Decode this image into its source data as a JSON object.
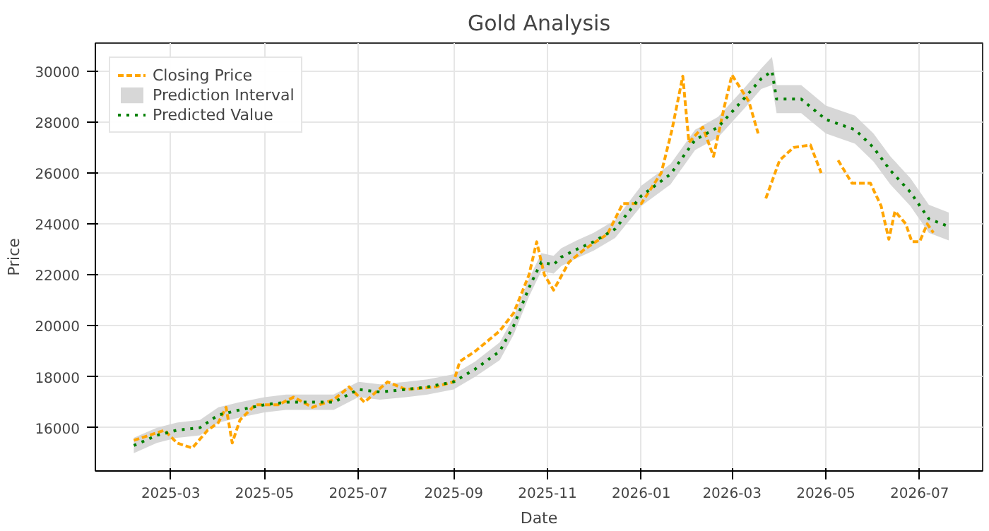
{
  "chart_data": {
    "type": "line",
    "title": "Gold Analysis",
    "xlabel": "Date",
    "ylabel": "Price",
    "xlim": [
      "2025-01-11",
      "2026-08-11"
    ],
    "xticks": [
      "2025-03",
      "2025-05",
      "2025-07",
      "2025-09",
      "2025-11",
      "2026-01",
      "2026-03",
      "2026-05",
      "2026-07"
    ],
    "ylim": [
      14300,
      31100
    ],
    "yticks": [
      16000,
      18000,
      20000,
      22000,
      24000,
      26000,
      28000,
      30000
    ],
    "grid": true,
    "legend": "top left",
    "series": [
      {
        "name": "Closing Price",
        "color": "#ffa500",
        "line_style": "dashed",
        "x": [
          "2025-02-05",
          "2025-02-15",
          "2025-02-25",
          "2025-03-05",
          "2025-03-15",
          "2025-03-25",
          "2025-04-01",
          "2025-04-06",
          "2025-04-10",
          "2025-04-15",
          "2025-04-25",
          "2025-05-10",
          "2025-05-20",
          "2025-06-01",
          "2025-06-15",
          "2025-06-25",
          "2025-07-05",
          "2025-07-20",
          "2025-08-01",
          "2025-08-20",
          "2025-09-01",
          "2025-09-05",
          "2025-09-15",
          "2025-10-01",
          "2025-10-10",
          "2025-10-20",
          "2025-10-25",
          "2025-10-30",
          "2025-11-05",
          "2025-11-15",
          "2025-11-25",
          "2025-12-10",
          "2025-12-20",
          "2026-01-01",
          "2026-01-14",
          "2026-01-21",
          "2026-01-28",
          "2026-02-01",
          "2026-02-10",
          "2026-02-17",
          "2026-02-24",
          "2026-03-01",
          "2026-03-12",
          "2026-03-18",
          "2026-03-20",
          "2026-03-23",
          "2026-04-01",
          "2026-04-10",
          "2026-04-21",
          "2026-04-28",
          "2026-05-03",
          "2026-05-09",
          "2026-05-18",
          "2026-05-30",
          "2026-06-06",
          "2026-06-11",
          "2026-06-15",
          "2026-06-22",
          "2026-06-26",
          "2026-07-01",
          "2026-07-06",
          "2026-07-10"
        ],
        "values": [
          15500,
          15700,
          15900,
          15400,
          15200,
          15900,
          16200,
          16800,
          15400,
          16300,
          16900,
          16900,
          17200,
          16800,
          17100,
          17600,
          17000,
          17800,
          17500,
          17600,
          17800,
          18600,
          19000,
          19800,
          20500,
          22000,
          23300,
          22000,
          21400,
          22500,
          23000,
          23600,
          24800,
          24800,
          26000,
          27700,
          29800,
          27200,
          27800,
          26650,
          28600,
          29850,
          28800,
          27550,
          null,
          25000,
          26500,
          27000,
          27100,
          26000,
          null,
          26500,
          25600,
          25600,
          24700,
          23400,
          24500,
          24000,
          23300,
          23300,
          24000,
          23650
        ]
      },
      {
        "name": "Prediction Interval",
        "type": "area",
        "color": "#d3d3d3"
      },
      {
        "name": "Predicted Value",
        "color": "#008000",
        "line_style": "dotted",
        "x": [
          "2025-02-05",
          "2025-02-20",
          "2025-03-05",
          "2025-03-20",
          "2025-04-01",
          "2025-04-15",
          "2025-05-01",
          "2025-05-15",
          "2025-06-01",
          "2025-06-15",
          "2025-07-01",
          "2025-07-15",
          "2025-08-01",
          "2025-08-15",
          "2025-09-01",
          "2025-09-15",
          "2025-10-01",
          "2025-10-10",
          "2025-10-20",
          "2025-10-28",
          "2025-11-05",
          "2025-11-10",
          "2025-11-20",
          "2025-12-01",
          "2025-12-15",
          "2026-01-01",
          "2026-01-20",
          "2026-02-05",
          "2026-02-20",
          "2026-03-10",
          "2026-03-20",
          "2026-03-27",
          "2026-03-30",
          "2026-04-15",
          "2026-05-01",
          "2026-05-20",
          "2026-06-01",
          "2026-06-12",
          "2026-06-25",
          "2026-07-07",
          "2026-07-20"
        ],
        "values": [
          15300,
          15700,
          15900,
          16000,
          16500,
          16700,
          16900,
          17000,
          17000,
          17000,
          17500,
          17400,
          17500,
          17600,
          17800,
          18300,
          19000,
          20000,
          21500,
          22500,
          22400,
          22700,
          23000,
          23300,
          23800,
          25100,
          25950,
          27300,
          27800,
          29000,
          29700,
          30000,
          28900,
          28900,
          28100,
          27700,
          27000,
          26100,
          25250,
          24200,
          23900
        ],
        "lower": [
          15000,
          15400,
          15600,
          15700,
          16200,
          16400,
          16600,
          16700,
          16700,
          16700,
          17200,
          17100,
          17200,
          17300,
          17500,
          18000,
          18650,
          19650,
          21150,
          22150,
          22050,
          22350,
          22650,
          22950,
          23450,
          24700,
          25550,
          26900,
          27400,
          28600,
          29300,
          29450,
          28350,
          28350,
          27550,
          27150,
          26450,
          25550,
          24700,
          23650,
          23350
        ],
        "upper": [
          15600,
          16000,
          16200,
          16300,
          16800,
          17000,
          17200,
          17300,
          17300,
          17300,
          17800,
          17700,
          17800,
          17900,
          18100,
          18600,
          19350,
          20350,
          21850,
          22850,
          22750,
          23050,
          23350,
          23650,
          24150,
          25500,
          26350,
          27700,
          28200,
          29400,
          30100,
          30550,
          29450,
          29450,
          28650,
          28250,
          27550,
          26650,
          25800,
          24750,
          24450
        ]
      }
    ]
  }
}
